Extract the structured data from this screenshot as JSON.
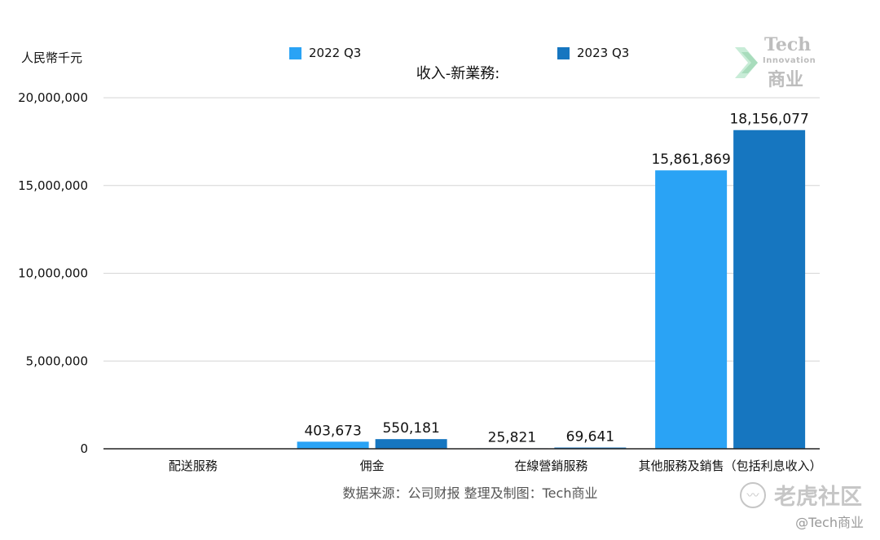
{
  "chart_data": {
    "type": "bar",
    "title": "收入-新業務:",
    "unit_label": "人民幣千元",
    "categories": [
      "配送服務",
      "佣金",
      "在線營銷服務",
      "其他服務及銷售（包括利息收入）"
    ],
    "series": [
      {
        "name": "2022 Q3",
        "color": "#2aa3f5",
        "values": [
          0,
          403673,
          25821,
          15861869
        ],
        "labels": [
          "",
          "403,673",
          "25,821",
          "15,861,869"
        ]
      },
      {
        "name": "2023 Q3",
        "color": "#1676c0",
        "values": [
          0,
          550181,
          69641,
          18156077
        ],
        "labels": [
          "",
          "550,181",
          "69,641",
          "18,156,077"
        ]
      }
    ],
    "ylim": [
      0,
      20000000
    ],
    "yticks": [
      0,
      5000000,
      10000000,
      15000000,
      20000000
    ],
    "ytick_labels": [
      "0",
      "5,000,000",
      "10,000,000",
      "15,000,000",
      "20,000,000"
    ],
    "grid": true,
    "legend_position": "top"
  },
  "source_note": "数据来源：公司财报 整理及制图：Tech商业",
  "logo": {
    "line1": "Tech",
    "line2": "Innovation",
    "line3": "商业"
  },
  "watermark": {
    "text": "老虎社区",
    "icon": "tiger-icon"
  },
  "handle": "@Tech商业"
}
